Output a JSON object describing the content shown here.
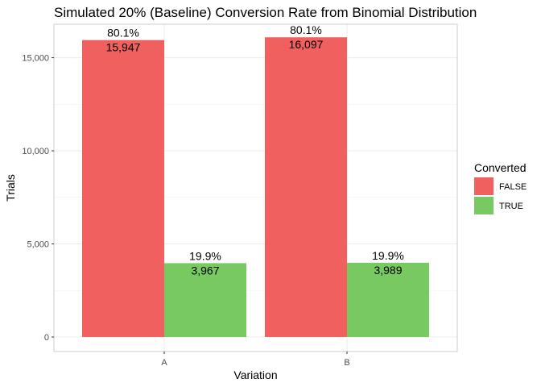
{
  "chart_data": {
    "type": "bar",
    "title": "Simulated 20% (Baseline) Conversion Rate from Binomial Distribution",
    "xlabel": "Variation",
    "ylabel": "Trials",
    "categories": [
      "A",
      "B"
    ],
    "ylim": [
      0,
      16800
    ],
    "yticks": [
      0,
      5000,
      10000,
      15000
    ],
    "ytick_labels": [
      "0",
      "5,000",
      "10,000",
      "15,000"
    ],
    "grid": true,
    "legend": {
      "title": "Converted",
      "placement": "right",
      "entries": [
        "FALSE",
        "TRUE"
      ]
    },
    "series": [
      {
        "name": "FALSE",
        "color": "#f0605e",
        "values": [
          15947,
          16097
        ],
        "value_labels": [
          "15,947",
          "16,097"
        ],
        "percent_labels": [
          "80.1%",
          "80.1%"
        ]
      },
      {
        "name": "TRUE",
        "color": "#78c962",
        "values": [
          3967,
          3989
        ],
        "value_labels": [
          "3,967",
          "3,989"
        ],
        "percent_labels": [
          "19.9%",
          "19.9%"
        ]
      }
    ]
  }
}
